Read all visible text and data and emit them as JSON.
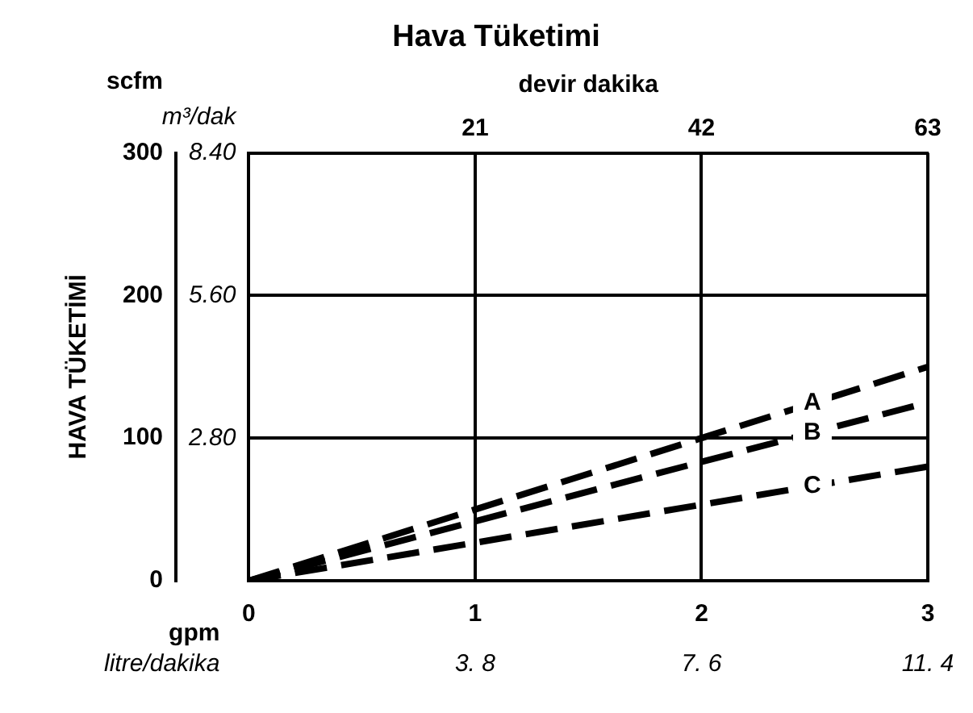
{
  "chart_data": {
    "type": "line",
    "title": "Hava Tüketimi",
    "ylabel": "HAVA TÜKETİMİ",
    "y2label": "m³/dak",
    "xlabel": "gpm",
    "x2label": "devir dakika",
    "annotations": [
      "scfm",
      "litre/dakika",
      "3. 8",
      "7. 6",
      "11. 4"
    ],
    "x": [
      0,
      3
    ],
    "series": [
      {
        "name": "A",
        "color": "#000000",
        "values": [
          0,
          150
        ]
      },
      {
        "name": "B",
        "color": "#000000",
        "values": [
          0,
          125
        ]
      },
      {
        "name": "C",
        "color": "#000000",
        "values": [
          0,
          80
        ]
      }
    ],
    "xlim": [
      0,
      3
    ],
    "xticks": [
      0,
      1,
      2,
      3
    ],
    "x2lim": [
      0,
      63
    ],
    "x2ticks": [
      21,
      42,
      63
    ],
    "ylim": [
      0,
      300
    ],
    "yticks": [
      0,
      100,
      200,
      300
    ],
    "y2lim": [
      0,
      8.4
    ],
    "y2ticks": [
      {
        "value": 2.8,
        "label": "2.80"
      },
      {
        "value": 5.6,
        "label": "5.60"
      },
      {
        "value": 8.4,
        "label": "8.40"
      }
    ],
    "grid": true,
    "legend": false,
    "marker": "none",
    "line_style": "dashed"
  }
}
